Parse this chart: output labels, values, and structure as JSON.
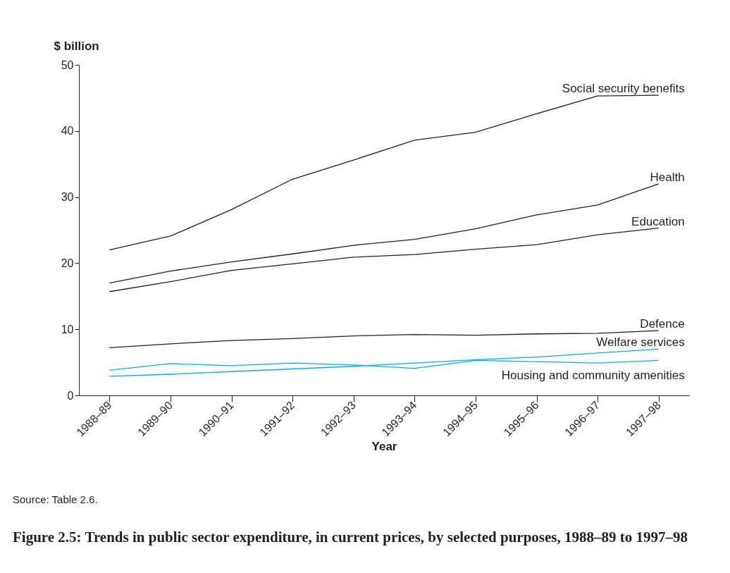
{
  "chart_data": {
    "type": "line",
    "title": "Figure 2.5: Trends in public sector expenditure, in current prices, by selected purposes, 1988–89 to 1997–98",
    "xlabel": "Year",
    "ylabel": "$ billion",
    "categories": [
      "1988–89",
      "1989–90",
      "1990–91",
      "1991–92",
      "1992–93",
      "1993–94",
      "1994–95",
      "1995–96",
      "1996–97",
      "1997–98"
    ],
    "ylim": [
      0,
      50
    ],
    "yticks": [
      0,
      10,
      20,
      30,
      40,
      50
    ],
    "grid": false,
    "legend": false,
    "marker": "none",
    "line_style": "solid",
    "annotations": [
      "Source: Table 2.6."
    ],
    "series": [
      {
        "name": "Social security benefits",
        "color": "#231f20",
        "values": [
          22.0,
          24.1,
          28.1,
          32.7,
          35.6,
          38.6,
          39.8,
          42.6,
          45.3,
          45.4
        ]
      },
      {
        "name": "Health",
        "color": "#231f20",
        "values": [
          17.0,
          18.8,
          20.2,
          21.4,
          22.7,
          23.6,
          25.2,
          27.3,
          28.8,
          32.0
        ]
      },
      {
        "name": "Education",
        "color": "#231f20",
        "values": [
          15.7,
          17.2,
          18.9,
          19.9,
          20.9,
          21.3,
          22.1,
          22.8,
          24.3,
          25.3
        ]
      },
      {
        "name": "Defence",
        "color": "#231f20",
        "values": [
          7.2,
          7.8,
          8.3,
          8.6,
          9.0,
          9.2,
          9.1,
          9.3,
          9.4,
          9.8
        ]
      },
      {
        "name": "Welfare services",
        "color": "#00aeef",
        "values": [
          2.9,
          3.2,
          3.6,
          4.0,
          4.4,
          4.9,
          5.4,
          5.8,
          6.4,
          7.0
        ]
      },
      {
        "name": "Housing and community amenities",
        "color": "#00aeef",
        "values": [
          3.8,
          4.8,
          4.5,
          4.9,
          4.6,
          4.1,
          5.3,
          5.1,
          4.9,
          5.3
        ]
      }
    ]
  }
}
